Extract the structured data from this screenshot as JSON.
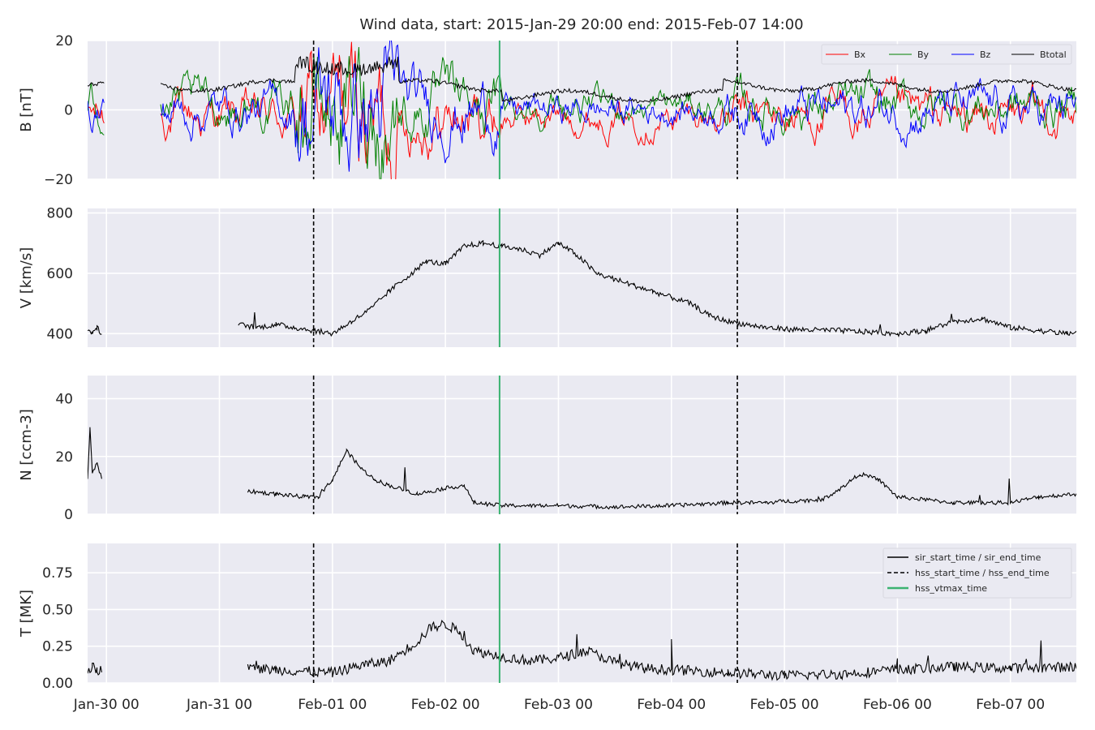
{
  "title": "Wind data, start: 2015-Jan-29 20:00  end: 2015-Feb-07 14:00",
  "chart_data": [
    {
      "type": "line",
      "id": "b",
      "ylabel": "B [nT]",
      "ylim": [
        -20,
        20
      ],
      "yticks": [
        -20,
        0,
        20
      ],
      "ytick_labels": [
        "−20",
        "0",
        "20"
      ],
      "series": [
        {
          "name": "Bx",
          "color": "#ff0000"
        },
        {
          "name": "By",
          "color": "#008000"
        },
        {
          "name": "Bz",
          "color": "#0000ff"
        },
        {
          "name": "Btotal",
          "color": "#000000"
        }
      ],
      "legend": "top-right"
    },
    {
      "type": "line",
      "id": "v",
      "ylabel": "V [km/s]",
      "ylim": [
        355,
        815
      ],
      "yticks": [
        400,
        600,
        800
      ],
      "ytick_labels": [
        "400",
        "600",
        "800"
      ],
      "series": [
        {
          "color": "#000000",
          "x": [
            "2015-01-29 20:00",
            "2015-01-29 21:00",
            "2015-01-29 22:00",
            "2015-01-29 23:00",
            "2015-01-31 00:00",
            "2015-01-31 04:00",
            "2015-01-31 08:00",
            "2015-01-31 12:00",
            "2015-01-31 16:00",
            "2015-01-31 20:00",
            "2015-02-01 00:00",
            "2015-02-01 04:00",
            "2015-02-01 08:00",
            "2015-02-01 12:00",
            "2015-02-01 16:00",
            "2015-02-01 20:00",
            "2015-02-02 00:00",
            "2015-02-02 04:00",
            "2015-02-02 08:00",
            "2015-02-02 12:00",
            "2015-02-02 16:00",
            "2015-02-02 20:00",
            "2015-02-03 00:00",
            "2015-02-03 04:00",
            "2015-02-03 08:00",
            "2015-02-03 12:00",
            "2015-02-03 16:00",
            "2015-02-03 20:00",
            "2015-02-04 00:00",
            "2015-02-04 04:00",
            "2015-02-04 08:00",
            "2015-02-04 12:00",
            "2015-02-04 16:00",
            "2015-02-04 20:00",
            "2015-02-05 00:00",
            "2015-02-05 06:00",
            "2015-02-05 12:00",
            "2015-02-05 18:00",
            "2015-02-06 00:00",
            "2015-02-06 06:00",
            "2015-02-06 12:00",
            "2015-02-06 18:00",
            "2015-02-07 00:00",
            "2015-02-07 06:00",
            "2015-02-07 12:00",
            "2015-02-07 14:00"
          ],
          "y": [
            410,
            405,
            418,
            402,
            null,
            430,
            420,
            430,
            420,
            410,
            400,
            440,
            480,
            540,
            590,
            640,
            630,
            690,
            700,
            690,
            680,
            660,
            700,
            660,
            600,
            580,
            560,
            540,
            520,
            500,
            460,
            440,
            430,
            420,
            415,
            412,
            410,
            405,
            400,
            410,
            440,
            450,
            420,
            410,
            400,
            405
          ]
        }
      ]
    },
    {
      "type": "line",
      "id": "n",
      "ylabel": "N [ccm-3]",
      "ylim": [
        0,
        48
      ],
      "yticks": [
        0,
        20,
        40
      ],
      "ytick_labels": [
        "0",
        "20",
        "40"
      ],
      "series": [
        {
          "color": "#000000",
          "x": [
            "2015-01-29 20:00",
            "2015-01-29 20:30",
            "2015-01-29 21:00",
            "2015-01-29 22:00",
            "2015-01-29 23:00",
            "2015-01-31 00:00",
            "2015-01-31 06:00",
            "2015-01-31 12:00",
            "2015-01-31 18:00",
            "2015-01-31 21:00",
            "2015-02-01 00:00",
            "2015-02-01 03:00",
            "2015-02-01 06:00",
            "2015-02-01 09:00",
            "2015-02-01 12:00",
            "2015-02-01 18:00",
            "2015-02-02 00:00",
            "2015-02-02 04:00",
            "2015-02-02 06:00",
            "2015-02-02 12:00",
            "2015-02-02 18:00",
            "2015-02-03 00:00",
            "2015-02-03 12:00",
            "2015-02-04 00:00",
            "2015-02-04 12:00",
            "2015-02-04 20:00",
            "2015-02-05 00:00",
            "2015-02-05 08:00",
            "2015-02-05 12:00",
            "2015-02-05 16:00",
            "2015-02-05 20:00",
            "2015-02-06 00:00",
            "2015-02-06 06:00",
            "2015-02-06 12:00",
            "2015-02-06 18:00",
            "2015-02-07 00:00",
            "2015-02-07 06:00",
            "2015-02-07 14:00"
          ],
          "y": [
            12,
            30,
            14,
            18,
            12,
            null,
            8,
            7,
            6,
            6,
            12,
            22,
            16,
            12,
            10,
            7,
            9,
            10,
            4,
            3,
            3,
            3,
            2.5,
            3,
            4,
            4,
            4.5,
            5,
            9,
            14,
            12,
            6,
            5,
            4,
            4,
            4,
            6,
            7
          ]
        }
      ]
    },
    {
      "type": "line",
      "id": "t",
      "ylabel": "T [MK]",
      "ylim": [
        0,
        0.95
      ],
      "yticks": [
        0,
        0.25,
        0.5,
        0.75
      ],
      "ytick_labels": [
        "0.00",
        "0.25",
        "0.50",
        "0.75"
      ],
      "series": [
        {
          "name": "sir_start_time / sir_end_time",
          "color": "#000000",
          "x": [
            "2015-01-29 20:00",
            "2015-01-29 21:00",
            "2015-01-29 22:00",
            "2015-01-29 23:00",
            "2015-01-31 00:00",
            "2015-01-31 06:00",
            "2015-01-31 12:00",
            "2015-01-31 18:00",
            "2015-02-01 00:00",
            "2015-02-01 06:00",
            "2015-02-01 12:00",
            "2015-02-01 18:00",
            "2015-02-01 21:00",
            "2015-02-02 00:00",
            "2015-02-02 03:00",
            "2015-02-02 06:00",
            "2015-02-02 12:00",
            "2015-02-02 18:00",
            "2015-02-03 00:00",
            "2015-02-03 06:00",
            "2015-02-03 12:00",
            "2015-02-03 18:00",
            "2015-02-04 00:00",
            "2015-02-04 12:00",
            "2015-02-05 00:00",
            "2015-02-05 12:00",
            "2015-02-06 00:00",
            "2015-02-06 12:00",
            "2015-02-07 00:00",
            "2015-02-07 14:00"
          ],
          "y": [
            0.09,
            0.11,
            0.08,
            0.1,
            null,
            0.1,
            0.09,
            0.08,
            0.07,
            0.12,
            0.15,
            0.28,
            0.38,
            0.4,
            0.35,
            0.22,
            0.18,
            0.15,
            0.17,
            0.22,
            0.14,
            0.1,
            0.09,
            0.07,
            0.05,
            0.06,
            0.09,
            0.11,
            0.1,
            0.11
          ]
        },
        {
          "name": "hss_start_time / hss_end_time",
          "color": "#000000"
        },
        {
          "name": "hss_vtmax_time",
          "color": "#3cb371"
        }
      ],
      "legend": "top-right"
    }
  ],
  "xaxis": {
    "range": [
      "2015-01-29 20:00",
      "2015-02-07 14:00"
    ],
    "tick_labels": [
      "Jan-30 00",
      "Jan-31 00",
      "Feb-01 00",
      "Feb-02 00",
      "Feb-03 00",
      "Feb-04 00",
      "Feb-05 00",
      "Feb-06 00",
      "Feb-07 00"
    ]
  },
  "markers": {
    "hss_start_time": "2015-01-31 20:00",
    "hss_end_time": "2015-02-04 14:00",
    "hss_vtmax_time": "2015-02-02 11:30"
  },
  "colors": {
    "bg": "#eaeaf2",
    "hss_vtmax": "#3cb371"
  }
}
